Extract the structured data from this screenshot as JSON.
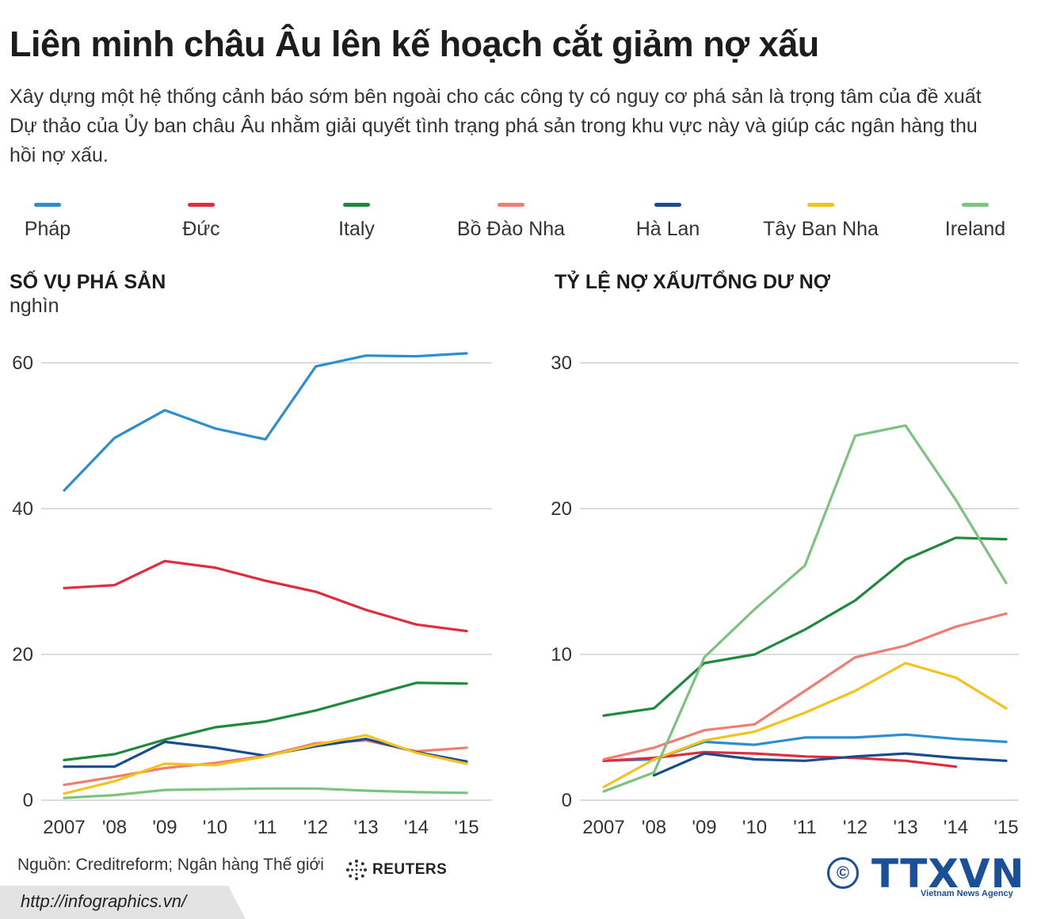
{
  "header": {
    "title": "Liên minh châu Âu lên kế hoạch cắt giảm nợ xấu",
    "subtitle": "Xây dựng một hệ thống cảnh báo sớm bên ngoài cho các công ty có nguy cơ phá sản là trọng tâm của đề xuất Dự thảo của Ủy ban châu Âu nhằm giải quyết tình trạng phá sản trong khu vực này và giúp các ngân hàng thu hồi nợ xấu."
  },
  "legend": [
    {
      "name": "Pháp",
      "color": "#2b8fcf"
    },
    {
      "name": "Đức",
      "color": "#e22b3c"
    },
    {
      "name": "Italy",
      "color": "#1f8a3c"
    },
    {
      "name": "Bồ Đào Nha",
      "color": "#ef7d70"
    },
    {
      "name": "Hà Lan",
      "color": "#1b4b8f"
    },
    {
      "name": "Tây Ban Nha",
      "color": "#f5c21b"
    },
    {
      "name": "Ireland",
      "color": "#7cc47e"
    }
  ],
  "chart_data": [
    {
      "type": "line",
      "title": "SỐ VỤ PHÁ SẢN",
      "ylabel": "nghìn",
      "xlabel": "",
      "categories": [
        "2007",
        "'08",
        "'09",
        "'10",
        "'11",
        "'12",
        "'13",
        "'14",
        "'15"
      ],
      "ylim": [
        0,
        60
      ],
      "yticks": [
        "0",
        "20",
        "40",
        "60"
      ],
      "grid": true,
      "series": [
        {
          "name": "Pháp",
          "color": "#2b8fcf",
          "values": [
            42.5,
            49.7,
            53.5,
            51.0,
            49.5,
            59.5,
            61.0,
            60.9,
            61.3
          ]
        },
        {
          "name": "Đức",
          "color": "#e22b3c",
          "values": [
            29.1,
            29.5,
            32.8,
            31.9,
            30.1,
            28.6,
            26.1,
            24.1,
            23.2
          ]
        },
        {
          "name": "Italy",
          "color": "#1f8a3c",
          "values": [
            5.5,
            6.3,
            8.3,
            10.0,
            10.8,
            12.3,
            14.2,
            16.1,
            16.0
          ]
        },
        {
          "name": "Bồ Đào Nha",
          "color": "#ef7d70",
          "values": [
            2.1,
            3.2,
            4.4,
            5.1,
            6.1,
            7.8,
            8.2,
            6.7,
            7.2
          ]
        },
        {
          "name": "Hà Lan",
          "color": "#1b4b8f",
          "values": [
            4.6,
            4.6,
            8.0,
            7.2,
            6.1,
            7.4,
            8.4,
            6.6,
            5.3
          ]
        },
        {
          "name": "Tây Ban Nha",
          "color": "#f5c21b",
          "values": [
            0.9,
            2.6,
            5.0,
            4.8,
            6.0,
            7.6,
            8.9,
            6.5,
            5.0
          ]
        },
        {
          "name": "Ireland",
          "color": "#7cc47e",
          "values": [
            0.3,
            0.7,
            1.4,
            1.5,
            1.6,
            1.6,
            1.3,
            1.1,
            1.0
          ]
        }
      ]
    },
    {
      "type": "line",
      "title": "TỶ LỆ NỢ XẤU/TỔNG DƯ NỢ",
      "ylabel": "",
      "xlabel": "",
      "categories": [
        "2007",
        "'08",
        "'09",
        "'10",
        "'11",
        "'12",
        "'13",
        "'14",
        "'15"
      ],
      "ylim": [
        0,
        30
      ],
      "yticks": [
        "0",
        "10",
        "20",
        "30"
      ],
      "grid": true,
      "series": [
        {
          "name": "Pháp",
          "color": "#2b8fcf",
          "values": [
            2.7,
            2.8,
            4.0,
            3.8,
            4.3,
            4.3,
            4.5,
            4.2,
            4.0
          ]
        },
        {
          "name": "Đức",
          "color": "#e22b3c",
          "values": [
            2.7,
            2.9,
            3.3,
            3.2,
            3.0,
            2.9,
            2.7,
            2.3,
            null
          ]
        },
        {
          "name": "Italy",
          "color": "#1f8a3c",
          "values": [
            5.8,
            6.3,
            9.4,
            10.0,
            11.7,
            13.7,
            16.5,
            18.0,
            17.9
          ]
        },
        {
          "name": "Bồ Đào Nha",
          "color": "#ef7d70",
          "values": [
            2.8,
            3.6,
            4.8,
            5.2,
            7.5,
            9.8,
            10.6,
            11.9,
            12.8
          ]
        },
        {
          "name": "Hà Lan",
          "color": "#1b4b8f",
          "values": [
            null,
            1.7,
            3.2,
            2.8,
            2.7,
            3.0,
            3.2,
            2.9,
            2.7
          ]
        },
        {
          "name": "Tây Ban Nha",
          "color": "#f5c21b",
          "values": [
            0.9,
            2.8,
            4.1,
            4.7,
            6.0,
            7.5,
            9.4,
            8.4,
            6.3
          ]
        },
        {
          "name": "Ireland",
          "color": "#7cc47e",
          "values": [
            0.6,
            1.9,
            9.8,
            13.1,
            16.1,
            25.0,
            25.7,
            20.6,
            14.9
          ]
        }
      ]
    }
  ],
  "footer": {
    "source": "Nguồn: Creditreform; Ngân hàng Thế giới",
    "reuters": "REUTERS",
    "url": "http://infographics.vn/",
    "copyright": "©",
    "brand": "TTXVN",
    "brand_sub": "Vietnam News Agency"
  }
}
